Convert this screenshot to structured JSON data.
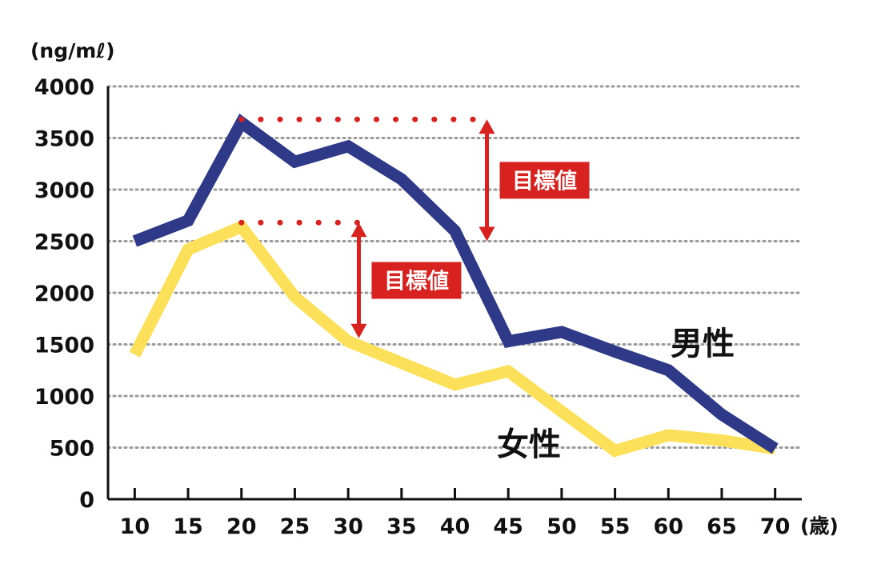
{
  "chart_data": {
    "type": "line",
    "ylabel": "(ng/mℓ)",
    "xlabel": "(歳)",
    "x": [
      10,
      15,
      20,
      25,
      30,
      35,
      40,
      45,
      50,
      55,
      60,
      65,
      70
    ],
    "x_tick_labels": [
      "10",
      "15",
      "20",
      "25",
      "30",
      "35",
      "40",
      "45",
      "50",
      "55",
      "60",
      "65",
      "70"
    ],
    "y_tick_labels": [
      "0",
      "500",
      "1000",
      "1500",
      "2000",
      "2500",
      "3000",
      "3500",
      "4000"
    ],
    "y_ticks": [
      0,
      500,
      1000,
      1500,
      2000,
      2500,
      3000,
      3500,
      4000
    ],
    "ylim": [
      0,
      4000
    ],
    "xlim": [
      7.5,
      72.5
    ],
    "grid": "horizontal dotted",
    "series": [
      {
        "name": "男性",
        "color": "#2e3a87",
        "values": [
          2500,
          2700,
          3650,
          3270,
          3420,
          3100,
          2600,
          1530,
          1620,
          1430,
          1250,
          820,
          490
        ]
      },
      {
        "name": "女性",
        "color": "#fde05a",
        "values": [
          1400,
          2420,
          2640,
          1960,
          1530,
          1320,
          1110,
          1240,
          850,
          470,
          620,
          570,
          490
        ]
      }
    ],
    "annotations": [
      {
        "label": "目標値",
        "series": "男性",
        "from_x": 20,
        "to_x": 43,
        "from_value": 2500,
        "to_value": 3680
      },
      {
        "label": "目標値",
        "series": "女性",
        "from_x": 20,
        "to_x": 31,
        "from_value": 1560,
        "to_value": 2680
      }
    ],
    "annotation_color": "#d8221f"
  }
}
